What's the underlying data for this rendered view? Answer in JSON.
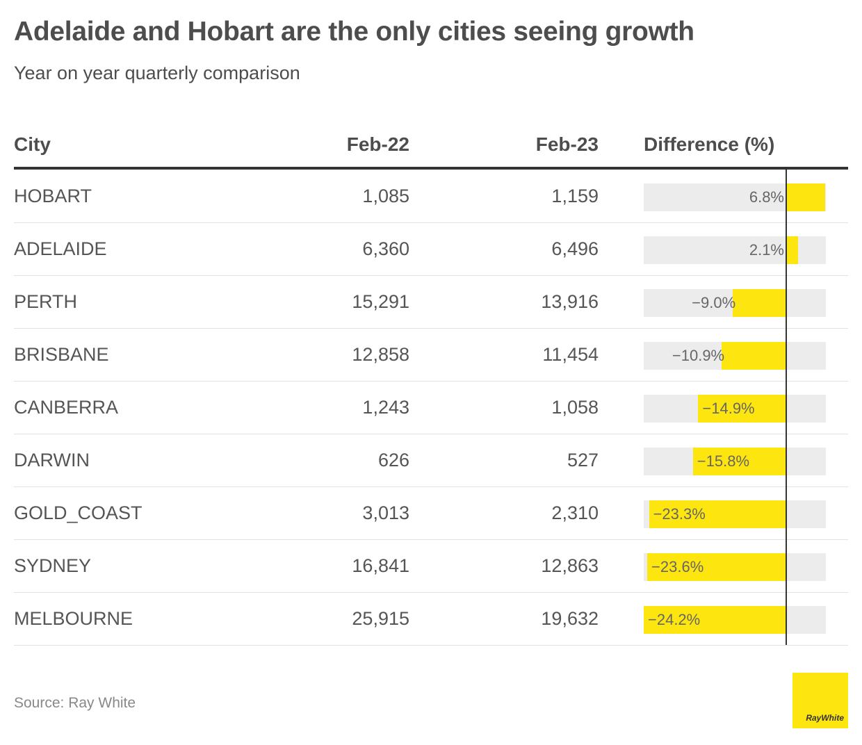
{
  "title": "Adelaide and Hobart are the only cities seeing growth",
  "subtitle": "Year on year quarterly comparison",
  "source": "Source: Ray White",
  "logo_text": "RayWhite",
  "colors": {
    "bar": "#fde50f",
    "bar_background": "#ececec",
    "zero_line": "#333333"
  },
  "chart_data": {
    "type": "table",
    "columns": [
      "City",
      "Feb-22",
      "Feb-23",
      "Difference (%)"
    ],
    "rows": [
      {
        "city": "HOBART",
        "feb22": "1,085",
        "feb23": "1,159",
        "diff": 6.8,
        "diff_label": "6.8%"
      },
      {
        "city": "ADELAIDE",
        "feb22": "6,360",
        "feb23": "6,496",
        "diff": 2.1,
        "diff_label": "2.1%"
      },
      {
        "city": "PERTH",
        "feb22": "15,291",
        "feb23": "13,916",
        "diff": -9.0,
        "diff_label": "−9.0%"
      },
      {
        "city": "BRISBANE",
        "feb22": "12,858",
        "feb23": "11,454",
        "diff": -10.9,
        "diff_label": "−10.9%"
      },
      {
        "city": "CANBERRA",
        "feb22": "1,243",
        "feb23": "1,058",
        "diff": -14.9,
        "diff_label": "−14.9%"
      },
      {
        "city": "DARWIN",
        "feb22": "626",
        "feb23": "527",
        "diff": -15.8,
        "diff_label": "−15.8%"
      },
      {
        "city": "GOLD_COAST",
        "feb22": "3,013",
        "feb23": "2,310",
        "diff": -23.3,
        "diff_label": "−23.3%"
      },
      {
        "city": "SYDNEY",
        "feb22": "16,841",
        "feb23": "12,863",
        "diff": -23.6,
        "diff_label": "−23.6%"
      },
      {
        "city": "MELBOURNE",
        "feb22": "25,915",
        "feb23": "19,632",
        "diff": -24.2,
        "diff_label": "−24.2%"
      }
    ],
    "diff_range": [
      -24.2,
      7.3
    ]
  }
}
